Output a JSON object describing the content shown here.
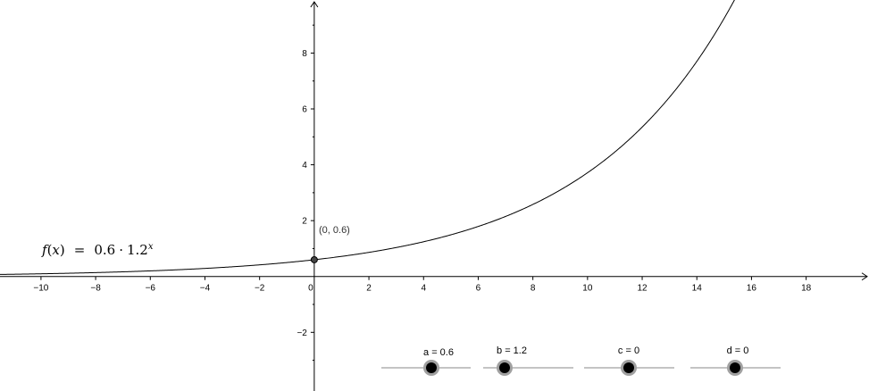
{
  "graph": {
    "function_label": {
      "f": "f",
      "paren_open": "(",
      "var": "x",
      "paren_close": ")",
      "equals": "=",
      "coef": "0.6",
      "dot": "·",
      "base": "1.2",
      "exponent": "x"
    },
    "point_label": "(0, 0.6)",
    "x_tick_labels": [
      "−10",
      "−8",
      "−6",
      "−4",
      "−2",
      "0",
      "2",
      "4",
      "6",
      "8",
      "10",
      "12",
      "14",
      "16",
      "18"
    ],
    "y_tick_labels": [
      "8",
      "6",
      "4",
      "2",
      "−2"
    ]
  },
  "chart_data": {
    "type": "line",
    "series": [
      {
        "function": "0.6 * 1.2^x",
        "a": 0.6,
        "b": 1.2,
        "c": 0,
        "d": 0
      }
    ],
    "point": {
      "x": 0,
      "y": 0.6
    },
    "xlim": [
      -11.5,
      20.3
    ],
    "ylim": [
      -4.1,
      9.9
    ],
    "x_ticks": [
      -10,
      -8,
      -6,
      -4,
      -2,
      0,
      2,
      4,
      6,
      8,
      10,
      12,
      14,
      16,
      18
    ],
    "y_ticks": [
      8,
      6,
      4,
      2,
      -2
    ],
    "grid": false
  },
  "sliders": [
    {
      "label": "a = 0.6",
      "value": 0.6
    },
    {
      "label": "b = 1.2",
      "value": 1.2
    },
    {
      "label": "c = 0",
      "value": 0
    },
    {
      "label": "d = 0",
      "value": 0
    }
  ],
  "colors": {
    "axis": "#000000",
    "curve": "#000000",
    "point": "#444444",
    "slider_line": "#888888",
    "slider_halo": "#a0a0a0",
    "slider_knob": "#000000"
  }
}
